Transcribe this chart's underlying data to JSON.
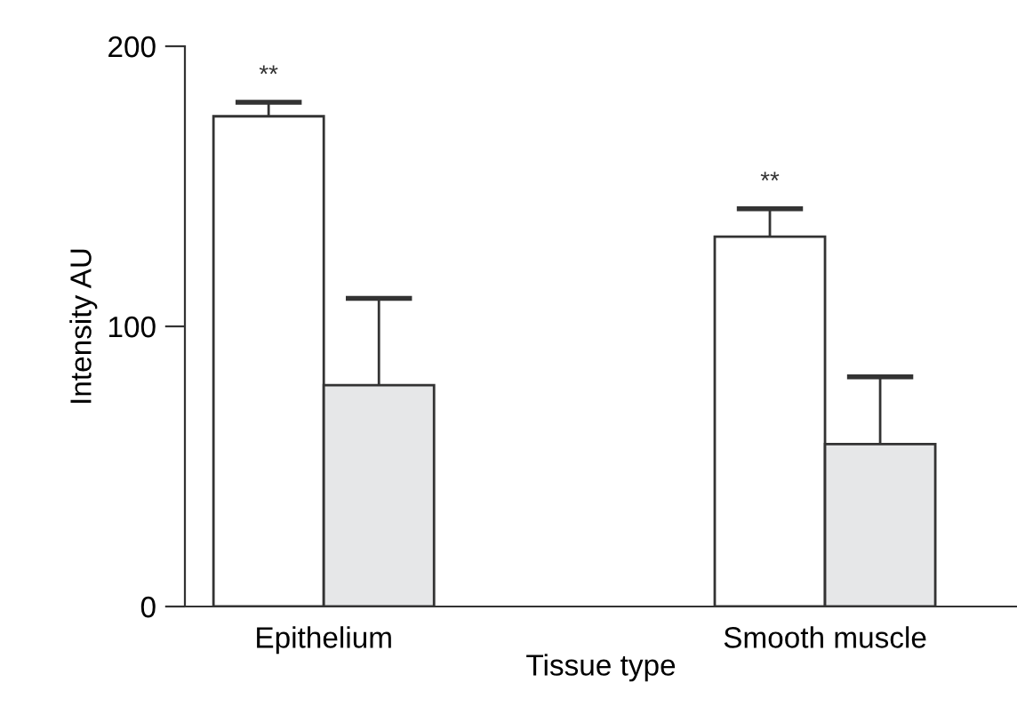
{
  "chart_data": {
    "type": "bar",
    "xlabel": "Tissue type",
    "ylabel": "Intensity AU",
    "categories": [
      "Epithelium",
      "Smooth muscle"
    ],
    "series": [
      {
        "color": "#ffffff",
        "values": [
          175,
          132
        ],
        "errors": [
          [
            175,
            180
          ],
          [
            132,
            142
          ]
        ]
      },
      {
        "color": "#e6e7e8",
        "values": [
          79,
          58
        ],
        "errors": [
          [
            79,
            110
          ],
          [
            58,
            82
          ]
        ]
      }
    ],
    "ylim": [
      0,
      200
    ],
    "yticks": [
      0,
      100,
      200
    ],
    "grid": false,
    "legend": false,
    "annotations": [
      "**",
      "**"
    ]
  }
}
